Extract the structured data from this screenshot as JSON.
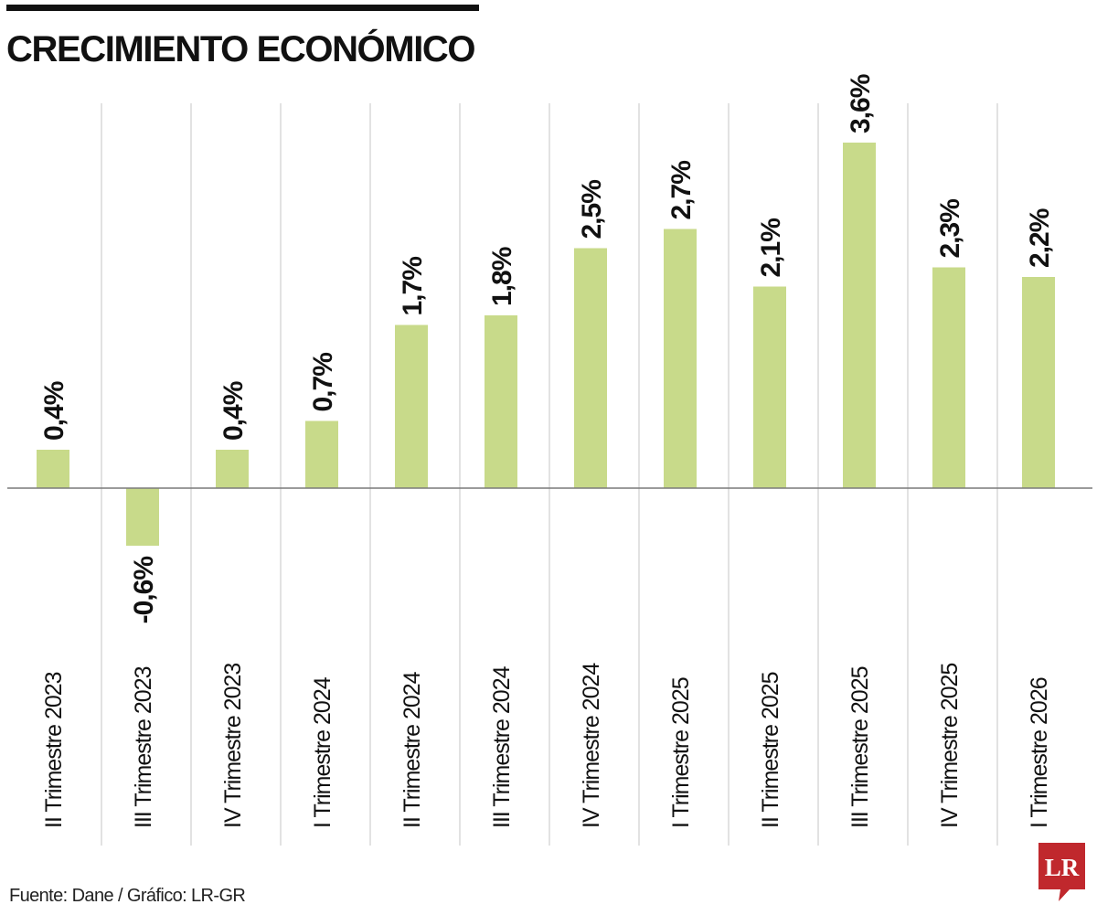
{
  "header": {
    "title": "CRECIMIENTO ECONÓMICO"
  },
  "footer": {
    "source": "Fuente: Dane / Gráfico: LR-GR",
    "logo_text": "LR"
  },
  "colors": {
    "bar": "#c8da8a",
    "grid": "#cfcfcf",
    "zero_line": "#7a7a7a",
    "text": "#111111",
    "logo": "#c0282d"
  },
  "chart_data": {
    "type": "bar",
    "categories": [
      "II Trimestre 2023",
      "III Trimestre 2023",
      "IV Trimestre 2023",
      "I Trimestre 2024",
      "II Trimestre 2024",
      "III Trimestre 2024",
      "IV Trimestre 2024",
      "I Trimestre 2025",
      "II Trimestre 2025",
      "III Trimestre 2025",
      "IV Trimestre 2025",
      "I Trimestre 2026"
    ],
    "values": [
      0.4,
      -0.6,
      0.4,
      0.7,
      1.7,
      1.8,
      2.5,
      2.7,
      2.1,
      3.6,
      2.3,
      2.2
    ],
    "data_labels": [
      "0,4%",
      "-0,6%",
      "0,4%",
      "0,7%",
      "1,7%",
      "1,8%",
      "2,5%",
      "2,7%",
      "2,1%",
      "3,6%",
      "2,3%",
      "2,2%"
    ],
    "title": "CRECIMIENTO ECONÓMICO",
    "xlabel": "",
    "ylabel": "",
    "ylim": [
      -0.6,
      3.6
    ],
    "grid": "vertical column separators",
    "legend": "none"
  }
}
